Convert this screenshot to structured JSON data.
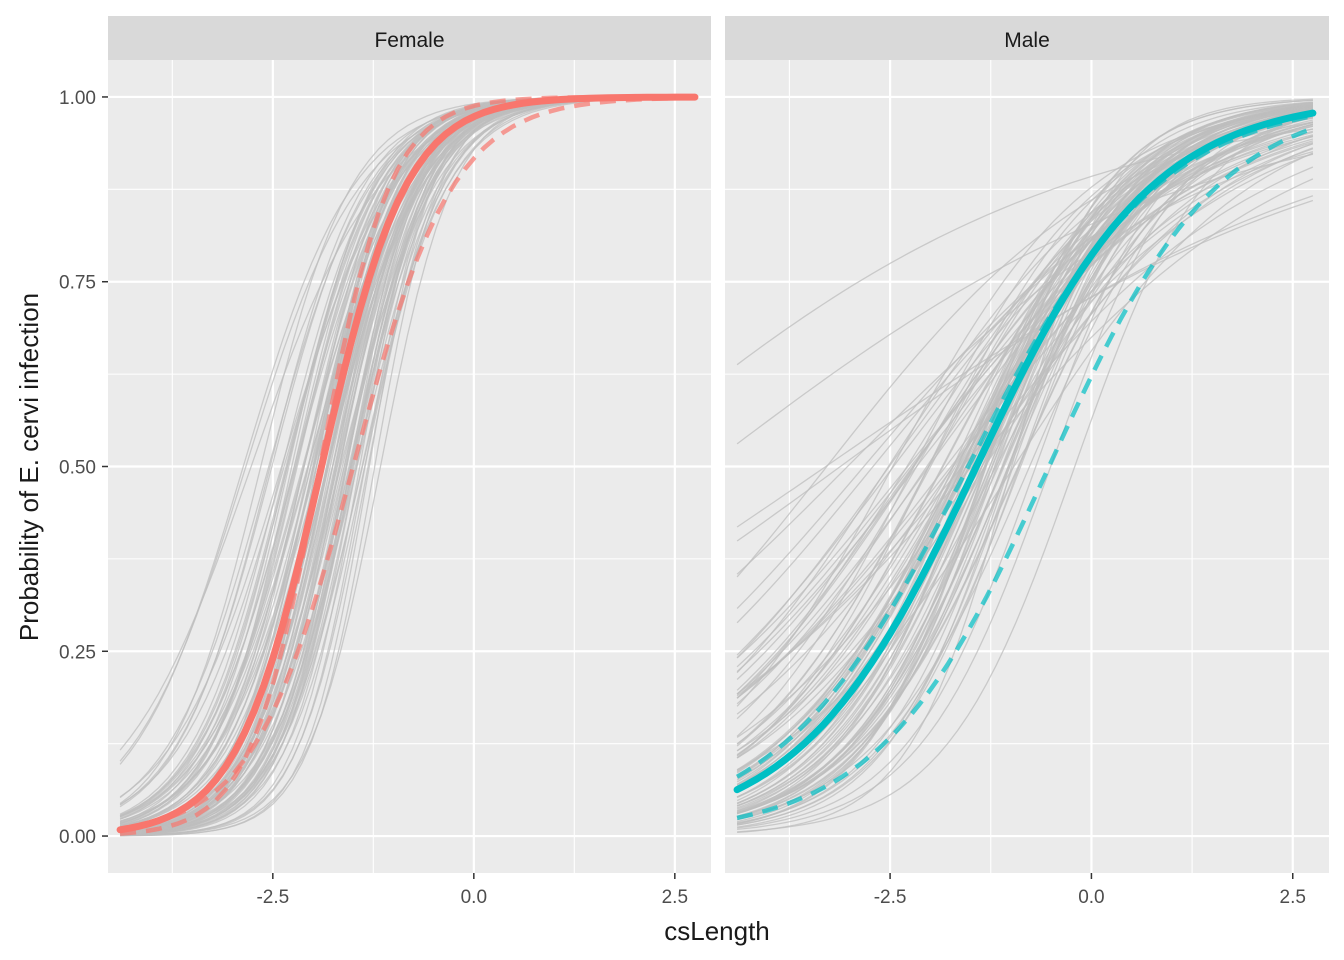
{
  "chart_data": {
    "type": "line",
    "xlabel": "csLength",
    "ylabel": "Probability of E. cervi infection",
    "xlim": [
      -4.55,
      2.95
    ],
    "ylim": [
      -0.05,
      1.05
    ],
    "x_ticks": [
      -2.5,
      0.0,
      2.5
    ],
    "x_tick_labels": [
      "-2.5",
      "0.0",
      "2.5"
    ],
    "y_ticks": [
      0,
      0.25,
      0.5,
      0.75,
      1.0
    ],
    "y_tick_labels": [
      "0.00",
      "0.25",
      "0.50",
      "0.75",
      "1.00"
    ],
    "grid": true,
    "legend": "none",
    "facets": [
      {
        "label": "Female",
        "color": "#F8766D",
        "x_range": [
          -4.4,
          2.75
        ],
        "mean_curve": {
          "a": 3.6,
          "b": 1.9
        },
        "lower_band": {
          "a": 4.4,
          "b": 2.3
        },
        "upper_band": {
          "a": 2.4,
          "b": 1.6
        },
        "sample_curves": 100,
        "sample_spread": {
          "a": 0.5,
          "b": 0.25
        }
      },
      {
        "label": "Male",
        "color": "#00BFC4",
        "x_range": [
          -4.4,
          2.75
        ],
        "mean_curve": {
          "a": 1.3,
          "b": 0.91
        },
        "lower_band": {
          "a": 1.3,
          "b": 0.85
        },
        "upper_band": {
          "a": 0.5,
          "b": 0.95
        },
        "sample_curves": 100,
        "sample_spread": {
          "a": 0.3,
          "b": 0.28
        }
      }
    ]
  },
  "colors": {
    "panel_bg": "#EBEBEB",
    "grid": "#FFFFFF",
    "strip_bg": "#D9D9D9",
    "sample_line": "#BEBEBE",
    "text": "#1A1A1A",
    "tick_text": "#4D4D4D"
  }
}
